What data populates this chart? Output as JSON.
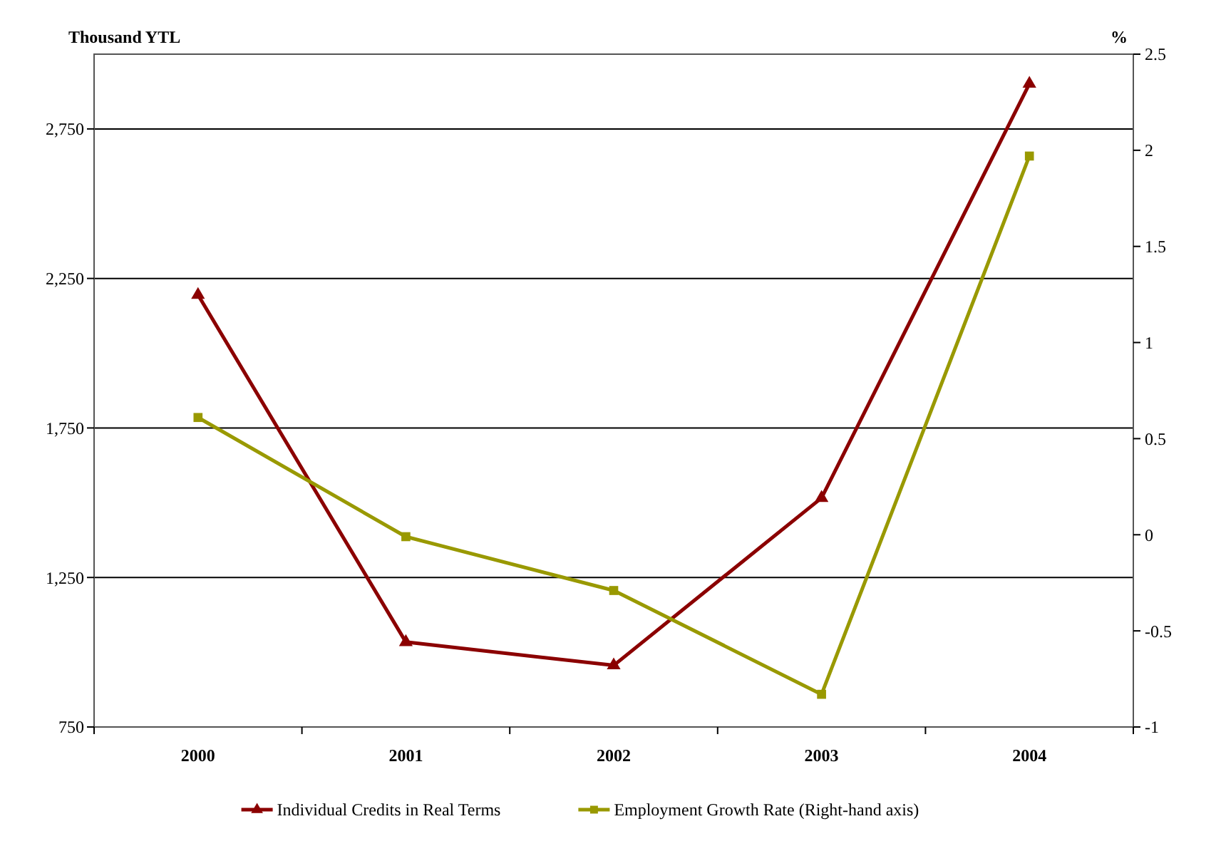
{
  "chart_data": {
    "type": "line",
    "ylabel": "Thousand YTL",
    "y2label": "%",
    "categories": [
      "2000",
      "2001",
      "2002",
      "2003",
      "2004"
    ],
    "series": [
      {
        "name": "Individual Credits in Real Terms",
        "color": "#8b0000",
        "marker": "triangle",
        "values": [
          2195,
          1034,
          956,
          1516,
          2901
        ]
      },
      {
        "name": "Employment Growth Rate (Right-hand axis)",
        "color": "#999900",
        "marker": "square",
        "axis": "y2",
        "values": [
          0.61,
          -0.01,
          -0.29,
          -0.83,
          1.97
        ]
      }
    ],
    "ylim": [
      750,
      3000
    ],
    "yticks": [
      750,
      {
        "value": 1250,
        "label": "1,250"
      },
      {
        "value": 1750,
        "label": "1,750"
      },
      {
        "value": 2250,
        "label": "2,250"
      },
      {
        "value": 2750,
        "label": "2,750"
      }
    ],
    "y2lim": [
      -1,
      2.5
    ],
    "y2ticks": [
      -1,
      -0.5,
      0,
      0.5,
      1,
      1.5,
      2,
      2.5
    ],
    "grid": "y",
    "legend": "bottom"
  }
}
